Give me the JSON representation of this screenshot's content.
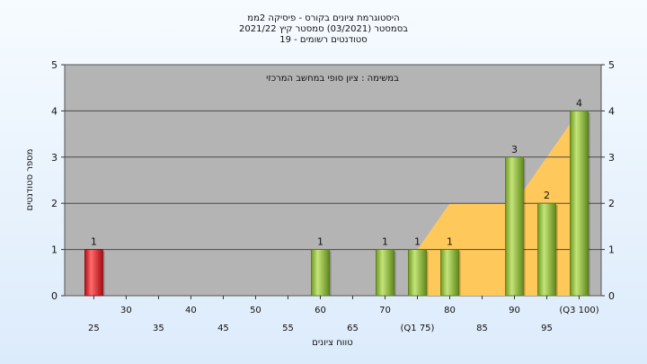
{
  "chart_data": {
    "type": "bar",
    "title_lines": [
      "היסטוגרמת ציונים בקורס - פיסיקה 2ממ",
      "בסמסטר  (03/2021)  סמסטר קיץ  2021/22",
      "סטודנטים רשומים - 19"
    ],
    "inner_label": "במשימה : ציון סופי במחשב המרכזי",
    "xlabel": "טווח ציונים",
    "ylabel": "מספר סטודנטים",
    "ylim": [
      0,
      5
    ],
    "yticks": [
      0,
      1,
      2,
      3,
      4,
      5
    ],
    "x_ticks": [
      {
        "v": 25,
        "label": "25"
      },
      {
        "v": 30,
        "label": "30"
      },
      {
        "v": 35,
        "label": "35"
      },
      {
        "v": 40,
        "label": "40"
      },
      {
        "v": 45,
        "label": "45"
      },
      {
        "v": 50,
        "label": "50"
      },
      {
        "v": 55,
        "label": "55"
      },
      {
        "v": 60,
        "label": "60"
      },
      {
        "v": 65,
        "label": "65"
      },
      {
        "v": 70,
        "label": "70"
      },
      {
        "v": 75,
        "label": "(Q1 75)"
      },
      {
        "v": 80,
        "label": "80"
      },
      {
        "v": 85,
        "label": "85"
      },
      {
        "v": 90,
        "label": "90"
      },
      {
        "v": 95,
        "label": "95"
      },
      {
        "v": 100,
        "label": "(Q3 100)"
      }
    ],
    "bars": [
      {
        "x": 25,
        "value": 1,
        "label": "1",
        "color": "red"
      },
      {
        "x": 60,
        "value": 1,
        "label": "1",
        "color": "green"
      },
      {
        "x": 70,
        "value": 1,
        "label": "1",
        "color": "green"
      },
      {
        "x": 75,
        "value": 1,
        "label": "1",
        "color": "green"
      },
      {
        "x": 80,
        "value": 1,
        "label": "1",
        "color": "green"
      },
      {
        "x": 90,
        "value": 3,
        "label": "3",
        "color": "green"
      },
      {
        "x": 95,
        "value": 2,
        "label": "2",
        "color": "green"
      },
      {
        "x": 100,
        "value": 4,
        "label": "4",
        "color": "green"
      }
    ],
    "area": {
      "x": [
        75,
        75,
        80,
        90,
        95,
        100,
        100
      ],
      "y": [
        0,
        1,
        2,
        2,
        3,
        4,
        0
      ]
    },
    "colors": {
      "plot_bg": "#b4b4b4",
      "area": "#ffc85a",
      "bar_red": "#e8262a",
      "bar_green": "#9cc83c"
    }
  }
}
